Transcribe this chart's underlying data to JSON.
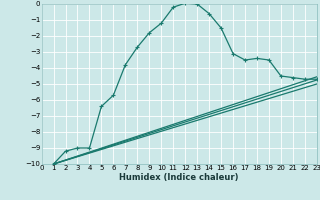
{
  "xlabel": "Humidex (Indice chaleur)",
  "ylabel": "",
  "background_color": "#cce8e8",
  "grid_color": "#ffffff",
  "line_color": "#1a7a6e",
  "xlim": [
    0,
    23
  ],
  "ylim": [
    -10,
    0
  ],
  "xticks": [
    0,
    1,
    2,
    3,
    4,
    5,
    6,
    7,
    8,
    9,
    10,
    11,
    12,
    13,
    14,
    15,
    16,
    17,
    18,
    19,
    20,
    21,
    22,
    23
  ],
  "yticks": [
    0,
    -1,
    -2,
    -3,
    -4,
    -5,
    -6,
    -7,
    -8,
    -9,
    -10
  ],
  "series1_x": [
    1,
    2,
    3,
    4,
    5,
    6,
    7,
    8,
    9,
    10,
    11,
    12,
    13,
    14,
    15,
    16,
    17,
    18,
    19,
    20,
    21,
    22,
    23
  ],
  "series1_y": [
    -10.0,
    -9.2,
    -9.0,
    -9.0,
    -6.4,
    -5.7,
    -3.8,
    -2.7,
    -1.8,
    -1.2,
    -0.2,
    0.05,
    0.0,
    -0.6,
    -1.5,
    -3.1,
    -3.5,
    -3.4,
    -3.5,
    -4.5,
    -4.6,
    -4.7,
    -4.7
  ],
  "series2_x": [
    1,
    23
  ],
  "series2_y": [
    -10.0,
    -4.55
  ],
  "series3_x": [
    1,
    23
  ],
  "series3_y": [
    -10.0,
    -4.75
  ],
  "series4_x": [
    1,
    23
  ],
  "series4_y": [
    -10.0,
    -5.0
  ],
  "marker": "+",
  "markersize": 3.5,
  "linewidth": 0.9
}
